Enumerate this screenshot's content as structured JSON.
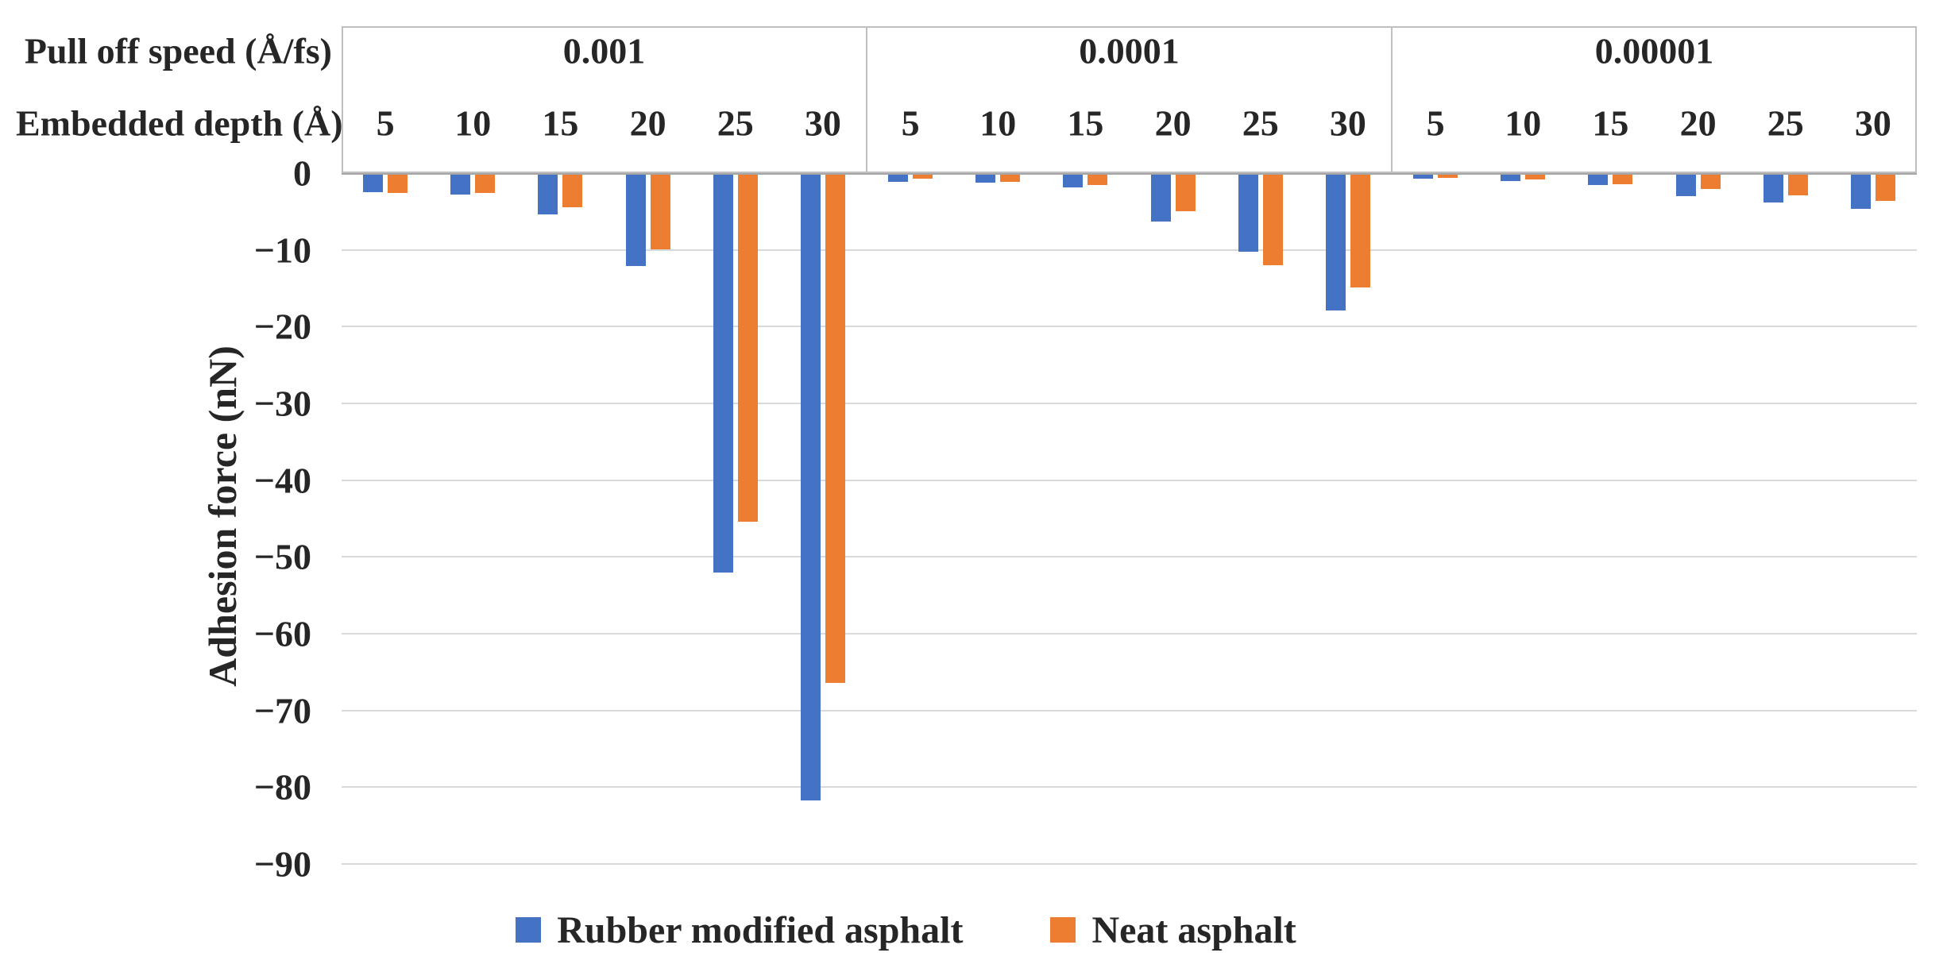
{
  "figure": {
    "y_axis_title": "Adhesion force (nN)",
    "row_labels": {
      "speed": "Pull off speed (Å/fs)",
      "depth": "Embedded depth (Å)"
    },
    "legend": [
      {
        "label": "Rubber modified asphalt",
        "color": "#4472C4"
      },
      {
        "label": "Neat asphalt",
        "color": "#ED7D31"
      }
    ]
  },
  "chart_data": {
    "type": "bar",
    "title": "",
    "ylabel": "Adhesion force (nN)",
    "ylim": [
      -90,
      0
    ],
    "yticks": [
      0,
      -10,
      -20,
      -30,
      -40,
      -50,
      -60,
      -70,
      -80,
      -90
    ],
    "grid": true,
    "legend_position": "bottom-center",
    "x_header_rows": [
      "Pull off speed (Å/fs)",
      "Embedded depth (Å)"
    ],
    "series_names": [
      "Rubber modified asphalt",
      "Neat asphalt"
    ],
    "series_colors": {
      "Rubber modified asphalt": "#4472C4",
      "Neat asphalt": "#ED7D31"
    },
    "groups": [
      {
        "pull_off_speed": "0.001",
        "embedded_depth": [
          5,
          10,
          15,
          20,
          25,
          30
        ],
        "series": [
          {
            "name": "Rubber modified asphalt",
            "color": "#4472C4",
            "values": [
              -2.3,
              -2.6,
              -5.2,
              -11.9,
              -51.8,
              -81.5
            ]
          },
          {
            "name": "Neat asphalt",
            "color": "#ED7D31",
            "values": [
              -2.4,
              -2.4,
              -4.2,
              -9.7,
              -45.2,
              -66.2
            ]
          }
        ]
      },
      {
        "pull_off_speed": "0.0001",
        "embedded_depth": [
          5,
          10,
          15,
          20,
          25,
          30
        ],
        "series": [
          {
            "name": "Rubber modified asphalt",
            "color": "#4472C4",
            "values": [
              -0.9,
              -1.0,
              -1.7,
              -6.1,
              -10.0,
              -17.7
            ]
          },
          {
            "name": "Neat asphalt",
            "color": "#ED7D31",
            "values": [
              -0.5,
              -0.9,
              -1.3,
              -4.8,
              -11.8,
              -14.7
            ]
          }
        ]
      },
      {
        "pull_off_speed": "0.00001",
        "embedded_depth": [
          5,
          10,
          15,
          20,
          25,
          30
        ],
        "series": [
          {
            "name": "Rubber modified asphalt",
            "color": "#4472C4",
            "values": [
              -0.5,
              -0.8,
              -1.3,
              -2.8,
              -3.6,
              -4.4
            ]
          },
          {
            "name": "Neat asphalt",
            "color": "#ED7D31",
            "values": [
              -0.4,
              -0.6,
              -1.2,
              -1.9,
              -2.7,
              -3.4
            ]
          }
        ]
      }
    ]
  }
}
